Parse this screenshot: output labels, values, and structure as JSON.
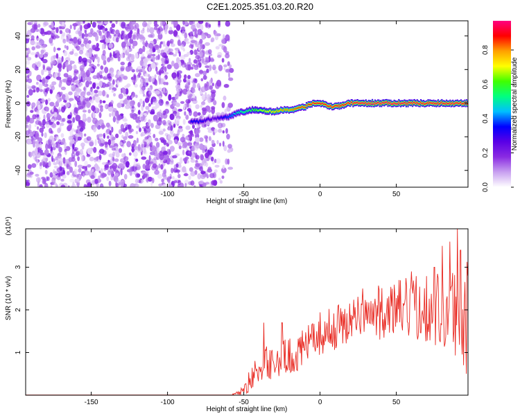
{
  "title": "C2E1.2025.351.03.20.R20",
  "chart_data": [
    {
      "type": "heatmap",
      "xlabel": "Height of straight line (km)",
      "ylabel": "Frequency (Hz)",
      "xlim": [
        -193,
        97
      ],
      "ylim": [
        -50,
        49
      ],
      "xticks": [
        -150,
        -100,
        -50,
        0,
        50
      ],
      "yticks": [
        -40,
        -20,
        0,
        20,
        40
      ],
      "colorbar": {
        "label": "Normalized spectral amplitude",
        "range": [
          0.0,
          0.97
        ],
        "ticks": [
          "0.0",
          "0.2",
          "0.4",
          "0.6",
          "0.8"
        ],
        "tick_values": [
          0.0,
          0.2,
          0.4,
          0.6,
          0.8
        ],
        "colormap": [
          "#ffffff",
          "#c8a0f0",
          "#8a2be2",
          "#5a00e6",
          "#0000ff",
          "#00bfff",
          "#00ff80",
          "#40ff00",
          "#ffff00",
          "#ffa000",
          "#ff0000",
          "#ff0080"
        ]
      },
      "noise_region": {
        "x_range": [
          -193,
          -58
        ],
        "freq_range": [
          -50,
          49
        ],
        "typical_amplitude": 0.15
      },
      "signal_ridge": {
        "x": [
          -85,
          -80,
          -70,
          -60,
          -55,
          -50,
          -45,
          -40,
          -35,
          -30,
          -25,
          -20,
          -15,
          -10,
          -5,
          0,
          5,
          10,
          15,
          20,
          30,
          40,
          50,
          60,
          70,
          80,
          90,
          97
        ],
        "frequency": [
          -11,
          -11,
          -9,
          -8,
          -6,
          -5,
          -4,
          -4,
          -5,
          -5,
          -4,
          -4,
          -3,
          -2,
          0,
          0,
          -2,
          -2,
          -1,
          0,
          0,
          0,
          0,
          0,
          0,
          0,
          0,
          0
        ],
        "amplitude": [
          0.35,
          0.35,
          0.25,
          0.4,
          0.5,
          0.55,
          0.6,
          0.65,
          0.7,
          0.75,
          0.8,
          0.8,
          0.85,
          0.85,
          0.9,
          0.9,
          0.9,
          0.9,
          0.9,
          0.92,
          0.95,
          0.95,
          0.95,
          0.93,
          0.92,
          0.93,
          0.93,
          0.9
        ]
      }
    },
    {
      "type": "line",
      "xlabel": "Height of straight line (km)",
      "ylabel": "SNR (10 * v/v)",
      "multiplier": "(x10⁴)",
      "xlim": [
        -193,
        97
      ],
      "ylim": [
        0,
        3.9
      ],
      "xticks": [
        -150,
        -100,
        -50,
        0,
        50
      ],
      "yticks": [
        1,
        2,
        3
      ],
      "series": [
        {
          "color": "#e8261e",
          "envelope_x": [
            -193,
            -60,
            -53,
            -50,
            -45,
            -40,
            -35,
            -30,
            -25,
            -20,
            -15,
            -10,
            -5,
            0,
            5,
            10,
            20,
            30,
            40,
            50,
            60,
            70,
            80,
            85,
            90,
            95
          ],
          "envelope_mean": [
            0.0,
            0.0,
            0.05,
            0.15,
            0.4,
            0.6,
            0.75,
            0.8,
            0.85,
            0.9,
            1.0,
            1.1,
            1.3,
            1.45,
            1.5,
            1.6,
            1.75,
            1.85,
            1.95,
            2.0,
            2.05,
            2.1,
            2.0,
            1.95,
            1.9,
            1.85
          ],
          "envelope_spread": [
            0.0,
            0.0,
            0.05,
            0.15,
            0.3,
            0.35,
            0.4,
            0.4,
            0.45,
            0.45,
            0.45,
            0.45,
            0.45,
            0.5,
            0.5,
            0.55,
            0.55,
            0.6,
            0.65,
            0.7,
            0.75,
            0.85,
            0.95,
            1.1,
            1.3,
            1.4
          ],
          "peaks": [
            {
              "x": -37,
              "y": 1.7
            },
            {
              "x": -25,
              "y": 1.7
            },
            {
              "x": 28,
              "y": 2.5
            },
            {
              "x": 60,
              "y": 2.9
            },
            {
              "x": 75,
              "y": 3.0
            },
            {
              "x": 80,
              "y": 3.5
            },
            {
              "x": 85,
              "y": 3.6
            },
            {
              "x": 90,
              "y": 3.9
            },
            {
              "x": 92,
              "y": 3.4
            }
          ]
        }
      ]
    }
  ]
}
